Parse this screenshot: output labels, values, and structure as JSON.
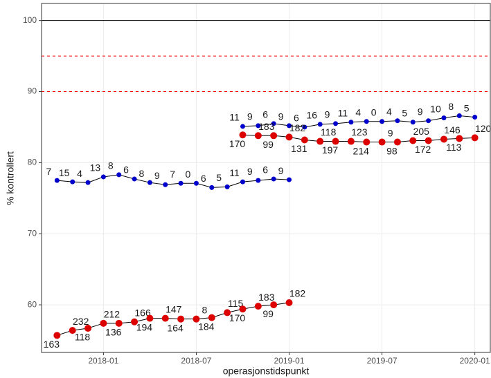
{
  "chart_data": {
    "type": "line",
    "x_label": "operasjonstidspunkt",
    "y_label": "% kontrollert",
    "xlim": [
      "2017-09",
      "2020-02"
    ],
    "xticks": [
      "2018-01",
      "2018-07",
      "2019-01",
      "2019-07",
      "2020-01"
    ],
    "ylim": [
      53.3,
      102.4
    ],
    "yticks": [
      60,
      70,
      80,
      90,
      100
    ],
    "grid": true,
    "reference_lines": [
      {
        "value": 100,
        "color": "#000000",
        "dashed": false
      },
      {
        "value": 95,
        "color": "#ff0000",
        "dashed": true
      },
      {
        "value": 90,
        "color": "#ff0000",
        "dashed": true
      }
    ],
    "series": [
      {
        "color": "#0000cd",
        "x": [
          "2017-10",
          "2017-11",
          "2017-12",
          "2018-01",
          "2018-02",
          "2018-03",
          "2018-04",
          "2018-05",
          "2018-06",
          "2018-07",
          "2018-08",
          "2018-09",
          "2018-10",
          "2018-11",
          "2018-12",
          "2019-01"
        ],
        "values": [
          77.5,
          77.3,
          77.2,
          78.0,
          78.3,
          77.7,
          77.2,
          76.9,
          77.1,
          77.1,
          76.5,
          76.6,
          77.3,
          77.5,
          77.7,
          77.6
        ],
        "point_labels": [
          "7",
          "15",
          "4",
          "13",
          "8",
          "6",
          "8",
          "9",
          "7",
          "0",
          "6",
          "5",
          "11",
          "9",
          "6",
          "9"
        ]
      },
      {
        "color": "#dd0000",
        "x": [
          "2017-10",
          "2017-11",
          "2017-12",
          "2018-01",
          "2018-02",
          "2018-03",
          "2018-04",
          "2018-05",
          "2018-06",
          "2018-07",
          "2018-08",
          "2018-09",
          "2018-10",
          "2018-11",
          "2018-12",
          "2019-01"
        ],
        "values": [
          55.7,
          56.4,
          56.7,
          57.4,
          57.4,
          57.6,
          58.1,
          58.1,
          58.0,
          58.0,
          58.2,
          58.9,
          59.4,
          59.8,
          60.0,
          60.3
        ],
        "point_labels": [
          "163",
          "232",
          "118",
          "212",
          "136",
          "166",
          "194",
          "147",
          "164",
          "8",
          "184",
          "115",
          "170",
          "183",
          "99",
          "182"
        ]
      },
      {
        "color": "#0000cd",
        "x": [
          "2018-10",
          "2018-11",
          "2018-12",
          "2019-01",
          "2019-02",
          "2019-03",
          "2019-04",
          "2019-05",
          "2019-06",
          "2019-07",
          "2019-08",
          "2019-09",
          "2019-10",
          "2019-11",
          "2019-12",
          "2020-01"
        ],
        "values": [
          85.1,
          85.2,
          85.5,
          85.2,
          85.0,
          85.4,
          85.5,
          85.7,
          85.8,
          85.8,
          85.9,
          85.7,
          85.9,
          86.3,
          86.6,
          86.4
        ],
        "point_labels": [
          "11",
          "9",
          "6",
          "9",
          "6",
          "16",
          "9",
          "11",
          "4",
          "0",
          "4",
          "5",
          "9",
          "10",
          "8",
          "5"
        ]
      },
      {
        "color": "#dd0000",
        "x": [
          "2018-10",
          "2018-11",
          "2018-12",
          "2019-01",
          "2019-02",
          "2019-03",
          "2019-04",
          "2019-05",
          "2019-06",
          "2019-07",
          "2019-08",
          "2019-09",
          "2019-10",
          "2019-11",
          "2019-12",
          "2020-01"
        ],
        "values": [
          83.9,
          83.8,
          83.8,
          83.6,
          83.2,
          83.0,
          83.0,
          83.0,
          82.9,
          82.9,
          82.9,
          83.1,
          83.1,
          83.3,
          83.4,
          83.5
        ],
        "point_labels": [
          "170",
          "183",
          "99",
          "182",
          "131",
          "118",
          "197",
          "123",
          "214",
          "9",
          "98",
          "205",
          "172",
          "146",
          "113",
          "120"
        ]
      }
    ]
  }
}
